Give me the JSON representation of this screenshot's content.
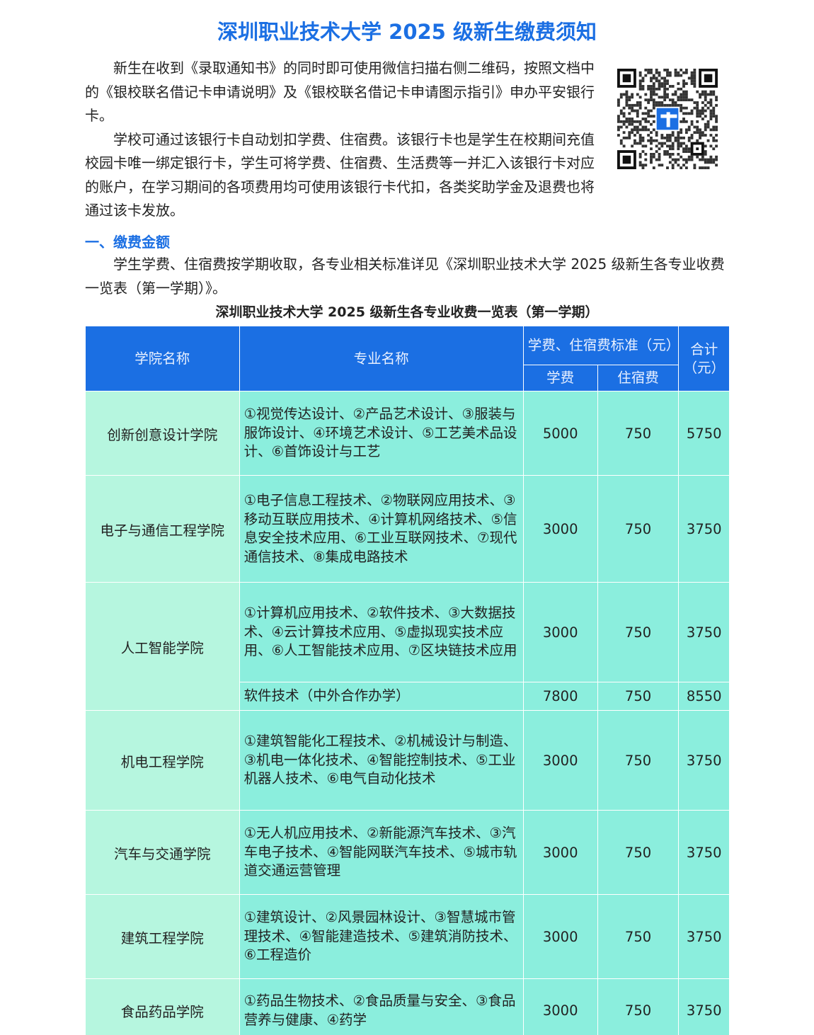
{
  "title": "深圳职业技术大学 2025 级新生缴费须知",
  "intro": [
    "新生在收到《录取通知书》的同时即可使用微信扫描右侧二维码，按照文档中的《银校联名借记卡申请说明》及《银校联名借记卡申请图示指引》申办平安银行卡。",
    "学校可通过该银行卡自动划扣学费、住宿费。该银行卡也是学生在校期间充值校园卡唯一绑定银行卡，学生可将学费、住宿费、生活费等一并汇入该银行卡对应的账户，在学习期间的各项费用均可使用该银行卡代扣，各类奖助学金及退费也将通过该卡发放。"
  ],
  "section1": {
    "heading": "一、缴费金额",
    "text": "学生学费、住宿费按学期收取，各专业相关标准详见《深圳职业技术大学 2025 级新生各专业收费一览表（第一学期）》。"
  },
  "table": {
    "title": "深圳职业技术大学 2025 级新生各专业收费一览表（第一学期）",
    "headers": {
      "college": "学院名称",
      "major": "专业名称",
      "standard": "学费、住宿费标准（元）",
      "tuition": "学费",
      "dorm": "住宿费",
      "total": "合计（元）"
    },
    "rows": [
      {
        "college": "创新创意设计学院",
        "major": "①视觉传达设计、②产品艺术设计、③服装与服饰设计、④环境艺术设计、⑤工艺美术品设计、⑥首饰设计与工艺",
        "tuition": "5000",
        "dorm": "750",
        "total": "5750"
      },
      {
        "college": "电子与通信工程学院",
        "major": "①电子信息工程技术、②物联网应用技术、③移动互联应用技术、④计算机网络技术、⑤信息安全技术应用、⑥工业互联网技术、⑦现代通信技术、⑧集成电路技术",
        "tuition": "3000",
        "dorm": "750",
        "total": "3750"
      },
      {
        "college": "人工智能学院",
        "major": "①计算机应用技术、②软件技术、③大数据技术、④云计算技术应用、⑤虚拟现实技术应用、⑥人工智能技术应用、⑦区块链技术应用",
        "tuition": "3000",
        "dorm": "750",
        "total": "3750"
      },
      {
        "college": "",
        "major": "软件技术（中外合作办学）",
        "tuition": "7800",
        "dorm": "750",
        "total": "8550"
      },
      {
        "college": "机电工程学院",
        "major": "①建筑智能化工程技术、②机械设计与制造、③机电一体化技术、④智能控制技术、⑤工业机器人技术、⑥电气自动化技术",
        "tuition": "3000",
        "dorm": "750",
        "total": "3750"
      },
      {
        "college": "汽车与交通学院",
        "major": "①无人机应用技术、②新能源汽车技术、③汽车电子技术、④智能网联汽车技术、⑤城市轨道交通运营管理",
        "tuition": "3000",
        "dorm": "750",
        "total": "3750"
      },
      {
        "college": "建筑工程学院",
        "major": "①建筑设计、②风景园林设计、③智慧城市管理技术、④智能建造技术、⑤建筑消防技术、⑥工程造价",
        "tuition": "3000",
        "dorm": "750",
        "total": "3750"
      },
      {
        "college": "食品药品学院",
        "major": "①药品生物技术、②食品质量与安全、③食品营养与健康、④药学",
        "tuition": "3000",
        "dorm": "750",
        "total": "3750"
      }
    ]
  },
  "colors": {
    "accent": "#1b6fe3",
    "college_cell": "#b6f6df",
    "major_cell": "#8beedd"
  }
}
